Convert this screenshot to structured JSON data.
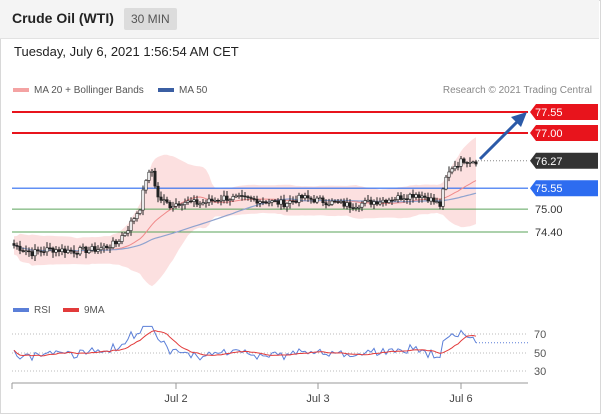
{
  "header": {
    "title": "Crude Oil (WTI)",
    "timeframe": "30 MIN",
    "datetime": "Tuesday, July 6, 2021 1:56:54 AM CET"
  },
  "legend": {
    "items": [
      {
        "label": "MA 20 + Bollinger Bands",
        "color": "#f4a3a3"
      },
      {
        "label": "MA 50",
        "color": "#3b5fa3"
      }
    ],
    "copyright": "Research © 2021 Trading Central"
  },
  "levels": [
    {
      "value": 77.55,
      "label": "77.55",
      "style": "red-line"
    },
    {
      "value": 77.0,
      "label": "77.00",
      "style": "red-line"
    },
    {
      "value": 76.27,
      "label": "76.27",
      "style": "current"
    },
    {
      "value": 75.55,
      "label": "75.55",
      "style": "blue-line"
    },
    {
      "value": 75.0,
      "label": "75.00",
      "style": "green-line"
    },
    {
      "value": 74.4,
      "label": "74.40",
      "style": "green-line"
    }
  ],
  "rsi_legend": {
    "items": [
      {
        "label": "RSI",
        "color": "#5b7fd8"
      },
      {
        "label": "9MA",
        "color": "#e23b3b"
      }
    ],
    "ticks": [
      "70",
      "50",
      "30"
    ]
  },
  "x_axis": {
    "ticks": [
      "Jul 2",
      "Jul 3",
      "Jul 6"
    ]
  },
  "colors": {
    "red": "#e8141c",
    "blue": "#2d6cf0",
    "green": "#5aa35a",
    "dark": "#333333",
    "band": "#fbd6d6"
  },
  "chart_data": {
    "type": "candlestick",
    "title": "",
    "levels": [
      77.55,
      77.0,
      76.27,
      75.55,
      75.0,
      74.4
    ],
    "last_price": 76.27,
    "forecast_target": 77.55,
    "rsi_levels": [
      70,
      50,
      30
    ],
    "x_ticks": [
      "Jul 2",
      "Jul 3",
      "Jul 6"
    ]
  }
}
